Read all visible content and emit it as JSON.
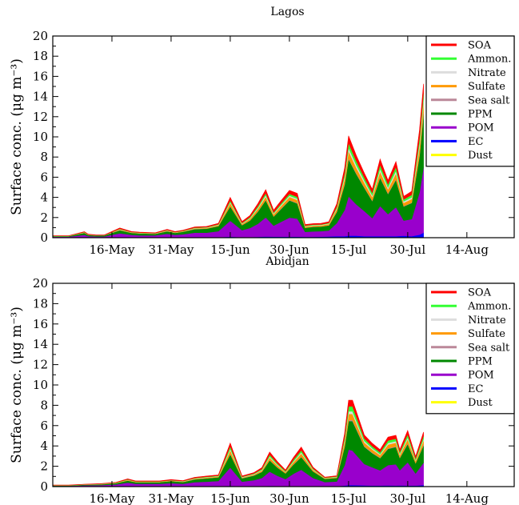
{
  "chart_data": [
    {
      "type": "area",
      "stacked": true,
      "title": "Lagos",
      "ylabel": "Surface conc.  (μg m⁻³)",
      "ylim": [
        0,
        20
      ],
      "yticks": [
        0,
        2,
        4,
        6,
        8,
        10,
        12,
        14,
        16,
        18,
        20
      ],
      "xlim": [
        "2016-05-01",
        "2016-08-26"
      ],
      "x_ticks": [
        {
          "label": "16-May",
          "date": "2016-05-16"
        },
        {
          "label": "31-May",
          "date": "2016-05-31"
        },
        {
          "label": "15-Jun",
          "date": "2016-06-15"
        },
        {
          "label": "30-Jun",
          "date": "2016-06-30"
        },
        {
          "label": "15-Jul",
          "date": "2016-07-15"
        },
        {
          "label": "30-Jul",
          "date": "2016-07-30"
        },
        {
          "label": "14-Aug",
          "date": "2016-08-14"
        }
      ],
      "legend": "top-right",
      "x": [
        "2016-05-01",
        "2016-05-05",
        "2016-05-09",
        "2016-05-10",
        "2016-05-12",
        "2016-05-14",
        "2016-05-18",
        "2016-05-21",
        "2016-05-23",
        "2016-05-27",
        "2016-05-30",
        "2016-06-01",
        "2016-06-03",
        "2016-06-06",
        "2016-06-09",
        "2016-06-12",
        "2016-06-15",
        "2016-06-18",
        "2016-06-20",
        "2016-06-22",
        "2016-06-24",
        "2016-06-26",
        "2016-06-28",
        "2016-06-30",
        "2016-07-02",
        "2016-07-04",
        "2016-07-06",
        "2016-07-08",
        "2016-07-10",
        "2016-07-12",
        "2016-07-14",
        "2016-07-15",
        "2016-07-17",
        "2016-07-19",
        "2016-07-21",
        "2016-07-23",
        "2016-07-25",
        "2016-07-27",
        "2016-07-29",
        "2016-07-31",
        "2016-08-02",
        "2016-08-03"
      ],
      "series": [
        {
          "name": "Dust",
          "color": "#ffff00",
          "values": [
            0,
            0,
            0,
            0,
            0,
            0,
            0,
            0,
            0,
            0,
            0,
            0,
            0,
            0,
            0,
            0,
            0,
            0,
            0,
            0,
            0,
            0,
            0,
            0,
            0,
            0,
            0,
            0,
            0,
            0,
            0,
            0,
            0,
            0,
            0,
            0,
            0,
            0,
            0,
            0,
            0,
            0
          ]
        },
        {
          "name": "EC",
          "color": "#0000ff",
          "values": [
            0.02,
            0.02,
            0.03,
            0.02,
            0.02,
            0.02,
            0.04,
            0.03,
            0.03,
            0.03,
            0.04,
            0.03,
            0.04,
            0.05,
            0.05,
            0.05,
            0.1,
            0.05,
            0.06,
            0.08,
            0.12,
            0.1,
            0.1,
            0.1,
            0.1,
            0.08,
            0.08,
            0.1,
            0.12,
            0.15,
            0.15,
            0.2,
            0.2,
            0.15,
            0.15,
            0.15,
            0.15,
            0.15,
            0.2,
            0.15,
            0.3,
            0.5
          ]
        },
        {
          "name": "POM",
          "color": "#9900cc",
          "values": [
            0.08,
            0.08,
            0.25,
            0.15,
            0.1,
            0.1,
            0.4,
            0.25,
            0.2,
            0.2,
            0.35,
            0.25,
            0.3,
            0.45,
            0.45,
            0.6,
            1.6,
            0.7,
            0.9,
            1.3,
            1.9,
            1.1,
            1.5,
            1.9,
            1.8,
            0.5,
            0.55,
            0.55,
            0.6,
            1.3,
            2.6,
            3.9,
            3.1,
            2.5,
            1.8,
            3.0,
            2.2,
            2.9,
            1.5,
            1.7,
            4.2,
            6.5
          ]
        },
        {
          "name": "PPM",
          "color": "#008800",
          "values": [
            0.05,
            0.05,
            0.2,
            0.1,
            0.1,
            0.1,
            0.3,
            0.2,
            0.2,
            0.15,
            0.25,
            0.2,
            0.25,
            0.35,
            0.4,
            0.5,
            1.4,
            0.5,
            0.75,
            1.2,
            1.7,
            0.9,
            1.3,
            1.7,
            1.5,
            0.4,
            0.45,
            0.45,
            0.5,
            1.1,
            2.5,
            3.7,
            3.0,
            2.3,
            1.7,
            2.8,
            2.0,
            2.7,
            1.4,
            1.6,
            3.6,
            5.3
          ]
        },
        {
          "name": "Sea salt",
          "color": "#bb8899",
          "values": [
            0,
            0,
            0.01,
            0.01,
            0,
            0,
            0.02,
            0.01,
            0.01,
            0.01,
            0.02,
            0.01,
            0.01,
            0.02,
            0.02,
            0.02,
            0.05,
            0.02,
            0.03,
            0.04,
            0.05,
            0.03,
            0.05,
            0.05,
            0.05,
            0.02,
            0.02,
            0.02,
            0.02,
            0.04,
            0.08,
            0.1,
            0.08,
            0.06,
            0.05,
            0.08,
            0.06,
            0.08,
            0.05,
            0.05,
            0.1,
            0.15
          ]
        },
        {
          "name": "Sulfate",
          "color": "#ff9900",
          "values": [
            0.01,
            0.01,
            0.03,
            0.02,
            0.01,
            0.01,
            0.06,
            0.03,
            0.03,
            0.02,
            0.05,
            0.03,
            0.04,
            0.06,
            0.06,
            0.08,
            0.3,
            0.1,
            0.15,
            0.25,
            0.3,
            0.2,
            0.25,
            0.3,
            0.3,
            0.1,
            0.1,
            0.1,
            0.12,
            0.25,
            0.5,
            0.7,
            0.55,
            0.45,
            0.35,
            0.55,
            0.4,
            0.55,
            0.3,
            0.35,
            0.8,
            0.9
          ]
        },
        {
          "name": "Nitrate",
          "color": "#dddddd",
          "values": [
            0.01,
            0.01,
            0.02,
            0.01,
            0.01,
            0.01,
            0.03,
            0.02,
            0.02,
            0.02,
            0.03,
            0.02,
            0.02,
            0.03,
            0.03,
            0.04,
            0.1,
            0.05,
            0.06,
            0.1,
            0.15,
            0.08,
            0.1,
            0.12,
            0.12,
            0.05,
            0.05,
            0.05,
            0.05,
            0.1,
            0.2,
            0.3,
            0.25,
            0.2,
            0.15,
            0.25,
            0.18,
            0.25,
            0.15,
            0.15,
            0.35,
            0.4
          ]
        },
        {
          "name": "Ammon.",
          "color": "#33ff33",
          "values": [
            0.01,
            0.01,
            0.02,
            0.01,
            0.01,
            0.01,
            0.04,
            0.02,
            0.02,
            0.02,
            0.03,
            0.02,
            0.03,
            0.04,
            0.04,
            0.05,
            0.15,
            0.06,
            0.1,
            0.15,
            0.2,
            0.1,
            0.15,
            0.18,
            0.18,
            0.05,
            0.05,
            0.05,
            0.06,
            0.15,
            0.3,
            0.5,
            0.4,
            0.3,
            0.25,
            0.4,
            0.3,
            0.4,
            0.2,
            0.25,
            0.55,
            0.6
          ]
        },
        {
          "name": "SOA",
          "color": "#ff0000",
          "values": [
            0.01,
            0.01,
            0.04,
            0.03,
            0.02,
            0.02,
            0.08,
            0.05,
            0.04,
            0.04,
            0.06,
            0.05,
            0.05,
            0.07,
            0.07,
            0.09,
            0.3,
            0.12,
            0.16,
            0.25,
            0.35,
            0.22,
            0.28,
            0.35,
            0.35,
            0.1,
            0.1,
            0.1,
            0.12,
            0.26,
            0.55,
            0.7,
            0.55,
            0.44,
            0.35,
            0.57,
            0.4,
            0.52,
            0.3,
            0.35,
            0.8,
            0.9
          ]
        }
      ]
    },
    {
      "type": "area",
      "stacked": true,
      "title": "Abidjan",
      "ylabel": "Surface conc.  (μg m⁻³)",
      "ylim": [
        0,
        20
      ],
      "yticks": [
        0,
        2,
        4,
        6,
        8,
        10,
        12,
        14,
        16,
        18,
        20
      ],
      "xlim": [
        "2016-05-01",
        "2016-08-26"
      ],
      "x_ticks": [
        {
          "label": "16-May",
          "date": "2016-05-16"
        },
        {
          "label": "31-May",
          "date": "2016-05-31"
        },
        {
          "label": "15-Jun",
          "date": "2016-06-15"
        },
        {
          "label": "30-Jun",
          "date": "2016-06-30"
        },
        {
          "label": "15-Jul",
          "date": "2016-07-15"
        },
        {
          "label": "30-Jul",
          "date": "2016-07-30"
        },
        {
          "label": "14-Aug",
          "date": "2016-08-14"
        }
      ],
      "legend": "top-right",
      "x": [
        "2016-05-01",
        "2016-05-05",
        "2016-05-09",
        "2016-05-13",
        "2016-05-17",
        "2016-05-20",
        "2016-05-22",
        "2016-05-25",
        "2016-05-28",
        "2016-05-31",
        "2016-06-03",
        "2016-06-06",
        "2016-06-09",
        "2016-06-12",
        "2016-06-15",
        "2016-06-18",
        "2016-06-21",
        "2016-06-23",
        "2016-06-25",
        "2016-06-27",
        "2016-06-29",
        "2016-07-01",
        "2016-07-03",
        "2016-07-06",
        "2016-07-09",
        "2016-07-12",
        "2016-07-14",
        "2016-07-15",
        "2016-07-16",
        "2016-07-19",
        "2016-07-21",
        "2016-07-23",
        "2016-07-25",
        "2016-07-27",
        "2016-07-28",
        "2016-07-30",
        "2016-08-01",
        "2016-08-03"
      ],
      "series": [
        {
          "name": "Dust",
          "color": "#ffff00",
          "values": [
            0,
            0,
            0,
            0,
            0,
            0,
            0,
            0,
            0,
            0,
            0,
            0,
            0,
            0,
            0,
            0,
            0,
            0,
            0,
            0,
            0,
            0,
            0,
            0,
            0,
            0,
            0,
            0,
            0,
            0,
            0,
            0,
            0,
            0,
            0,
            0,
            0,
            0
          ]
        },
        {
          "name": "EC",
          "color": "#0000ff",
          "values": [
            0.01,
            0.01,
            0.02,
            0.02,
            0.03,
            0.04,
            0.03,
            0.03,
            0.03,
            0.04,
            0.03,
            0.04,
            0.04,
            0.05,
            0.08,
            0.04,
            0.04,
            0.05,
            0.08,
            0.06,
            0.05,
            0.06,
            0.06,
            0.05,
            0.05,
            0.05,
            0.1,
            0.15,
            0.15,
            0.12,
            0.1,
            0.1,
            0.12,
            0.1,
            0.12,
            0.1,
            0.1,
            0.15
          ]
        },
        {
          "name": "POM",
          "color": "#9900cc",
          "values": [
            0.06,
            0.06,
            0.1,
            0.12,
            0.18,
            0.35,
            0.25,
            0.25,
            0.25,
            0.3,
            0.25,
            0.4,
            0.45,
            0.5,
            1.8,
            0.45,
            0.6,
            0.8,
            1.4,
            1.0,
            0.7,
            1.2,
            1.6,
            0.8,
            0.4,
            0.45,
            2.0,
            3.5,
            3.4,
            2.1,
            1.8,
            1.5,
            2.0,
            2.1,
            1.5,
            2.3,
            1.2,
            2.2
          ]
        },
        {
          "name": "PPM",
          "color": "#008800",
          "values": [
            0.04,
            0.04,
            0.07,
            0.08,
            0.12,
            0.2,
            0.15,
            0.15,
            0.15,
            0.2,
            0.17,
            0.28,
            0.32,
            0.36,
            1.3,
            0.33,
            0.45,
            0.6,
            1.1,
            0.8,
            0.55,
            0.9,
            1.25,
            0.65,
            0.3,
            0.35,
            1.8,
            2.8,
            2.9,
            1.7,
            1.4,
            1.2,
            1.6,
            1.7,
            1.2,
            1.8,
            1.0,
            1.7
          ]
        },
        {
          "name": "Sea salt",
          "color": "#bb8899",
          "values": [
            0,
            0,
            0,
            0,
            0.01,
            0.01,
            0.01,
            0.01,
            0.01,
            0.01,
            0.01,
            0.01,
            0.02,
            0.02,
            0.05,
            0.02,
            0.02,
            0.02,
            0.04,
            0.03,
            0.02,
            0.04,
            0.05,
            0.03,
            0.02,
            0.02,
            0.07,
            0.1,
            0.1,
            0.07,
            0.06,
            0.05,
            0.07,
            0.07,
            0.05,
            0.08,
            0.04,
            0.08
          ]
        },
        {
          "name": "Sulfate",
          "color": "#ff9900",
          "values": [
            0.01,
            0.01,
            0.01,
            0.02,
            0.02,
            0.05,
            0.03,
            0.03,
            0.03,
            0.04,
            0.03,
            0.05,
            0.06,
            0.06,
            0.35,
            0.06,
            0.08,
            0.12,
            0.25,
            0.18,
            0.1,
            0.2,
            0.3,
            0.12,
            0.05,
            0.06,
            0.4,
            0.6,
            0.6,
            0.35,
            0.3,
            0.25,
            0.35,
            0.35,
            0.25,
            0.4,
            0.2,
            0.4
          ]
        },
        {
          "name": "Nitrate",
          "color": "#dddddd",
          "values": [
            0.01,
            0.01,
            0.01,
            0.01,
            0.01,
            0.02,
            0.02,
            0.02,
            0.02,
            0.02,
            0.02,
            0.03,
            0.03,
            0.03,
            0.15,
            0.03,
            0.04,
            0.05,
            0.1,
            0.07,
            0.04,
            0.08,
            0.12,
            0.05,
            0.02,
            0.03,
            0.15,
            0.25,
            0.25,
            0.15,
            0.12,
            0.1,
            0.15,
            0.15,
            0.1,
            0.16,
            0.08,
            0.15
          ]
        },
        {
          "name": "Ammon.",
          "color": "#33ff33",
          "values": [
            0.01,
            0.01,
            0.01,
            0.02,
            0.02,
            0.04,
            0.03,
            0.03,
            0.03,
            0.03,
            0.03,
            0.04,
            0.05,
            0.05,
            0.25,
            0.05,
            0.06,
            0.09,
            0.18,
            0.12,
            0.07,
            0.15,
            0.2,
            0.08,
            0.04,
            0.05,
            0.3,
            0.5,
            0.5,
            0.25,
            0.2,
            0.18,
            0.25,
            0.25,
            0.18,
            0.3,
            0.15,
            0.3
          ]
        },
        {
          "name": "SOA",
          "color": "#ff0000",
          "values": [
            0.01,
            0.01,
            0.01,
            0.02,
            0.03,
            0.05,
            0.04,
            0.04,
            0.04,
            0.05,
            0.04,
            0.06,
            0.07,
            0.08,
            0.3,
            0.07,
            0.09,
            0.13,
            0.25,
            0.18,
            0.11,
            0.22,
            0.32,
            0.12,
            0.05,
            0.06,
            0.4,
            0.6,
            0.6,
            0.33,
            0.28,
            0.26,
            0.33,
            0.33,
            0.25,
            0.38,
            0.2,
            0.38
          ]
        }
      ]
    }
  ]
}
